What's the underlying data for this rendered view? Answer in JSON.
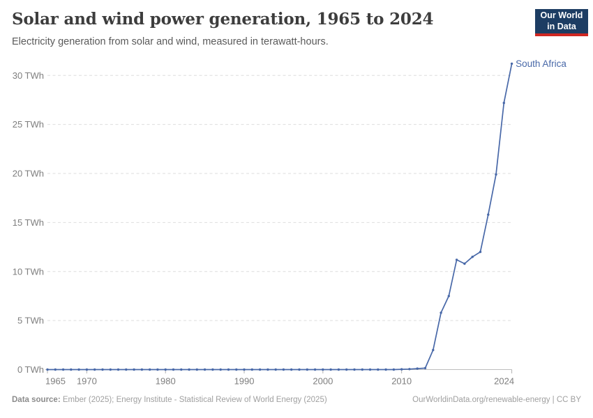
{
  "header": {
    "title": "Solar and wind power generation, 1965 to 2024",
    "subtitle": "Electricity generation from solar and wind, measured in terawatt-hours.",
    "logo": {
      "line1": "Our World",
      "line2": "in Data",
      "bg_color": "#1d3d63",
      "bar_color": "#cf2722"
    }
  },
  "chart_data": {
    "type": "line",
    "title": "Solar and wind power generation, 1965 to 2024",
    "xlabel": "",
    "ylabel": "",
    "xlim": [
      1965,
      2024
    ],
    "ylim": [
      0,
      30
    ],
    "x_ticks": [
      1965,
      1970,
      1980,
      1990,
      2000,
      2010,
      2024
    ],
    "y_ticks": [
      0,
      5,
      10,
      15,
      20,
      25,
      30
    ],
    "y_unit": "TWh",
    "grid": "horizontal-dashed",
    "legend": "end-of-line-label",
    "colors": {
      "grid": "#dedede",
      "axis": "#bdbdbd",
      "tick": "#b0b0b0",
      "tick_label": "#7e7e7e"
    },
    "series": [
      {
        "name": "South Africa",
        "color": "#4868a8",
        "years": [
          1965,
          1966,
          1967,
          1968,
          1969,
          1970,
          1971,
          1972,
          1973,
          1974,
          1975,
          1976,
          1977,
          1978,
          1979,
          1980,
          1981,
          1982,
          1983,
          1984,
          1985,
          1986,
          1987,
          1988,
          1989,
          1990,
          1991,
          1992,
          1993,
          1994,
          1995,
          1996,
          1997,
          1998,
          1999,
          2000,
          2001,
          2002,
          2003,
          2004,
          2005,
          2006,
          2007,
          2008,
          2009,
          2010,
          2011,
          2012,
          2013,
          2014,
          2015,
          2016,
          2017,
          2018,
          2019,
          2020,
          2021,
          2022,
          2023,
          2024
        ],
        "values": [
          0,
          0,
          0,
          0,
          0,
          0,
          0,
          0,
          0,
          0,
          0,
          0,
          0,
          0,
          0,
          0,
          0,
          0,
          0,
          0,
          0,
          0,
          0,
          0,
          0,
          0,
          0,
          0,
          0,
          0,
          0,
          0,
          0,
          0,
          0,
          0,
          0,
          0,
          0,
          0,
          0,
          0,
          0,
          0,
          0,
          0.03,
          0.05,
          0.1,
          0.15,
          2.0,
          5.8,
          7.5,
          11.2,
          10.8,
          11.5,
          12.0,
          15.8,
          19.9,
          27.2,
          31.2
        ]
      }
    ]
  },
  "footer": {
    "source_label": "Data source:",
    "source_text": " Ember (2025); Energy Institute - Statistical Review of World Energy (2025)",
    "credit": "OurWorldinData.org/renewable-energy | CC BY"
  }
}
